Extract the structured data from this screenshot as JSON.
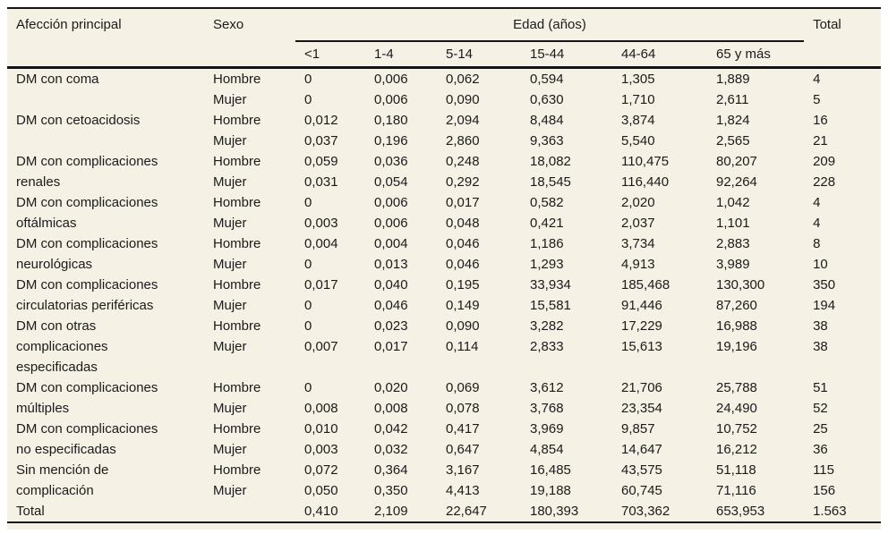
{
  "colors": {
    "sheet_background": "#f5f1e5",
    "text": "#1b1b1b",
    "rule": "#141414",
    "page_margin": "#ffffff"
  },
  "table": {
    "headers": {
      "afeccion": "Afección principal",
      "sexo": "Sexo",
      "edad_group": "Edad (años)",
      "age_cols": [
        "<1",
        "1-4",
        "5-14",
        "15-44",
        "44-64",
        "65 y más"
      ],
      "total": "Total"
    },
    "rows": [
      {
        "label": "DM con coma",
        "sexo": "Hombre",
        "values": [
          "0",
          "0,006",
          "0,062",
          "0,594",
          "1,305",
          "1,889"
        ],
        "total": "4"
      },
      {
        "label": "",
        "sexo": "Mujer",
        "values": [
          "0",
          "0,006",
          "0,090",
          "0,630",
          "1,710",
          "2,611"
        ],
        "total": "5"
      },
      {
        "label": "DM con cetoacidosis",
        "sexo": "Hombre",
        "values": [
          "0,012",
          "0,180",
          "2,094",
          "8,484",
          "3,874",
          "1,824"
        ],
        "total": "16"
      },
      {
        "label": "",
        "sexo": "Mujer",
        "values": [
          "0,037",
          "0,196",
          "2,860",
          "9,363",
          "5,540",
          "2,565"
        ],
        "total": "21"
      },
      {
        "label": "DM con complicaciones",
        "sexo": "Hombre",
        "values": [
          "0,059",
          "0,036",
          "0,248",
          "18,082",
          "110,475",
          "80,207"
        ],
        "total": "209"
      },
      {
        "label": "renales",
        "sexo": "Mujer",
        "values": [
          "0,031",
          "0,054",
          "0,292",
          "18,545",
          "116,440",
          "92,264"
        ],
        "total": "228"
      },
      {
        "label": "DM con complicaciones",
        "sexo": "Hombre",
        "values": [
          "0",
          "0,006",
          "0,017",
          "0,582",
          "2,020",
          "1,042"
        ],
        "total": "4"
      },
      {
        "label": "oftálmicas",
        "sexo": "Mujer",
        "values": [
          "0,003",
          "0,006",
          "0,048",
          "0,421",
          "2,037",
          "1,101"
        ],
        "total": "4"
      },
      {
        "label": "DM con complicaciones",
        "sexo": "Hombre",
        "values": [
          "0,004",
          "0,004",
          "0,046",
          "1,186",
          "3,734",
          "2,883"
        ],
        "total": "8"
      },
      {
        "label": "neurológicas",
        "sexo": "Mujer",
        "values": [
          "0",
          "0,013",
          "0,046",
          "1,293",
          "4,913",
          "3,989"
        ],
        "total": "10"
      },
      {
        "label": "DM con complicaciones",
        "sexo": "Hombre",
        "values": [
          "0,017",
          "0,040",
          "0,195",
          "33,934",
          "185,468",
          "130,300"
        ],
        "total": "350"
      },
      {
        "label": "circulatorias periféricas",
        "sexo": "Mujer",
        "values": [
          "0",
          "0,046",
          "0,149",
          "15,581",
          "91,446",
          "87,260"
        ],
        "total": "194"
      },
      {
        "label": "DM con otras",
        "sexo": "Hombre",
        "values": [
          "0",
          "0,023",
          "0,090",
          "3,282",
          "17,229",
          "16,988"
        ],
        "total": "38"
      },
      {
        "label": "complicaciones",
        "sexo": "Mujer",
        "values": [
          "0,007",
          "0,017",
          "0,114",
          "2,833",
          "15,613",
          "19,196"
        ],
        "total": "38"
      },
      {
        "label": "especificadas",
        "sexo": "",
        "values": [
          "",
          "",
          "",
          "",
          "",
          ""
        ],
        "total": ""
      },
      {
        "label": "DM con complicaciones",
        "sexo": "Hombre",
        "values": [
          "0",
          "0,020",
          "0,069",
          "3,612",
          "21,706",
          "25,788"
        ],
        "total": "51"
      },
      {
        "label": "múltiples",
        "sexo": "Mujer",
        "values": [
          "0,008",
          "0,008",
          "0,078",
          "3,768",
          "23,354",
          "24,490"
        ],
        "total": "52"
      },
      {
        "label": "DM con complicaciones",
        "sexo": "Hombre",
        "values": [
          "0,010",
          "0,042",
          "0,417",
          "3,969",
          "9,857",
          "10,752"
        ],
        "total": "25"
      },
      {
        "label": "no especificadas",
        "sexo": "Mujer",
        "values": [
          "0,003",
          "0,032",
          "0,647",
          "4,854",
          "14,647",
          "16,212"
        ],
        "total": "36"
      },
      {
        "label": "Sin mención de",
        "sexo": "Hombre",
        "values": [
          "0,072",
          "0,364",
          "3,167",
          "16,485",
          "43,575",
          "51,118"
        ],
        "total": "115"
      },
      {
        "label": "complicación",
        "sexo": "Mujer",
        "values": [
          "0,050",
          "0,350",
          "4,413",
          "19,188",
          "60,745",
          "71,116"
        ],
        "total": "156"
      },
      {
        "label": "Total",
        "sexo": "",
        "values": [
          "0,410",
          "2,109",
          "22,647",
          "180,393",
          "703,362",
          "653,953"
        ],
        "total": "1.563"
      }
    ]
  }
}
